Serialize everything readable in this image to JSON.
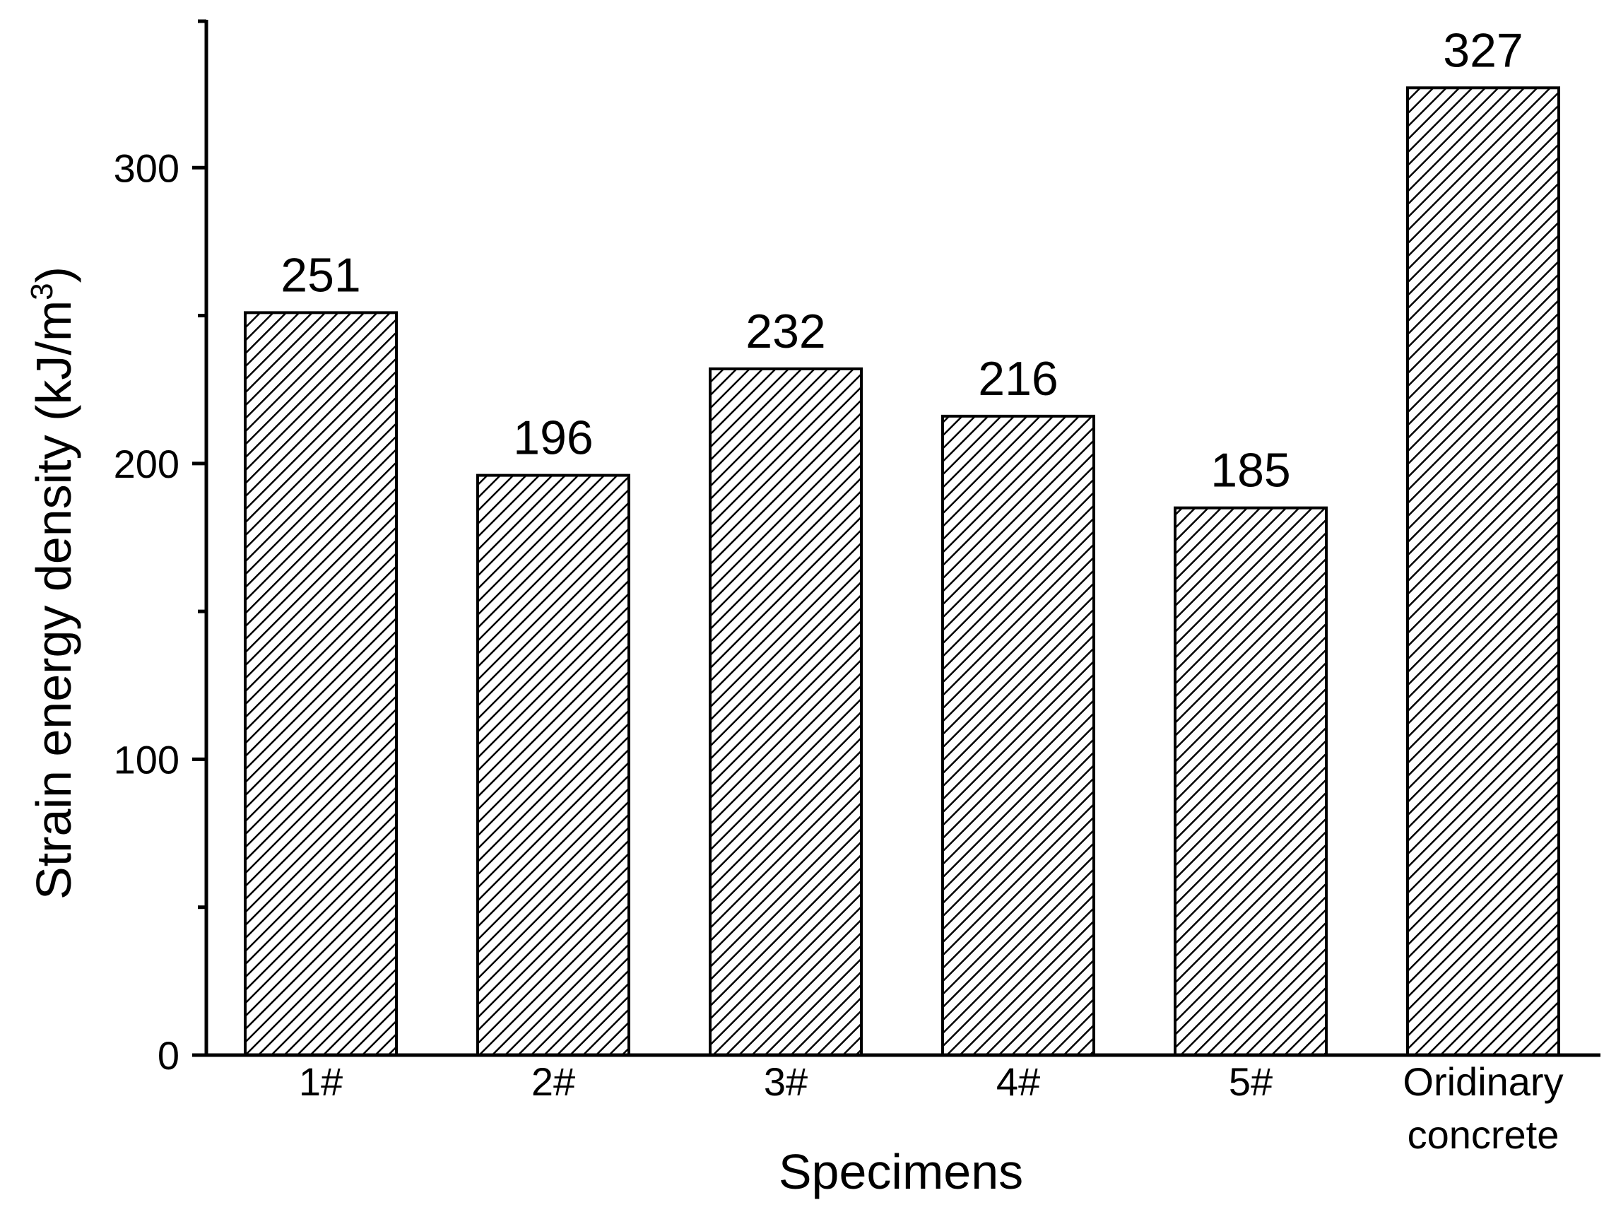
{
  "chart_data": {
    "type": "bar",
    "categories": [
      "1#",
      "2#",
      "3#",
      "4#",
      "5#",
      "Oridinary concrete"
    ],
    "values": [
      251,
      196,
      232,
      216,
      185,
      327
    ],
    "data_labels": [
      "251",
      "196",
      "232",
      "216",
      "185",
      "327"
    ],
    "title": "",
    "xlabel": "Specimens",
    "ylabel": "Strain energy density (kJ/m3)",
    "ylabel_parts": {
      "main": "Strain energy density (kJ/m",
      "superscript": "3",
      "close": ")"
    },
    "ylim": [
      0,
      350
    ],
    "y_ticks": [
      0,
      100,
      200,
      300
    ],
    "y_tick_labels": [
      "0",
      "100",
      "200",
      "300"
    ],
    "y_minor_ticks": [
      50,
      150,
      250
    ],
    "grid": false,
    "legend": "none",
    "bar_fill": "diagonal-hatch",
    "colors": {
      "bar_edge": "#000000",
      "hatch": "#000000",
      "background": "#ffffff"
    }
  }
}
